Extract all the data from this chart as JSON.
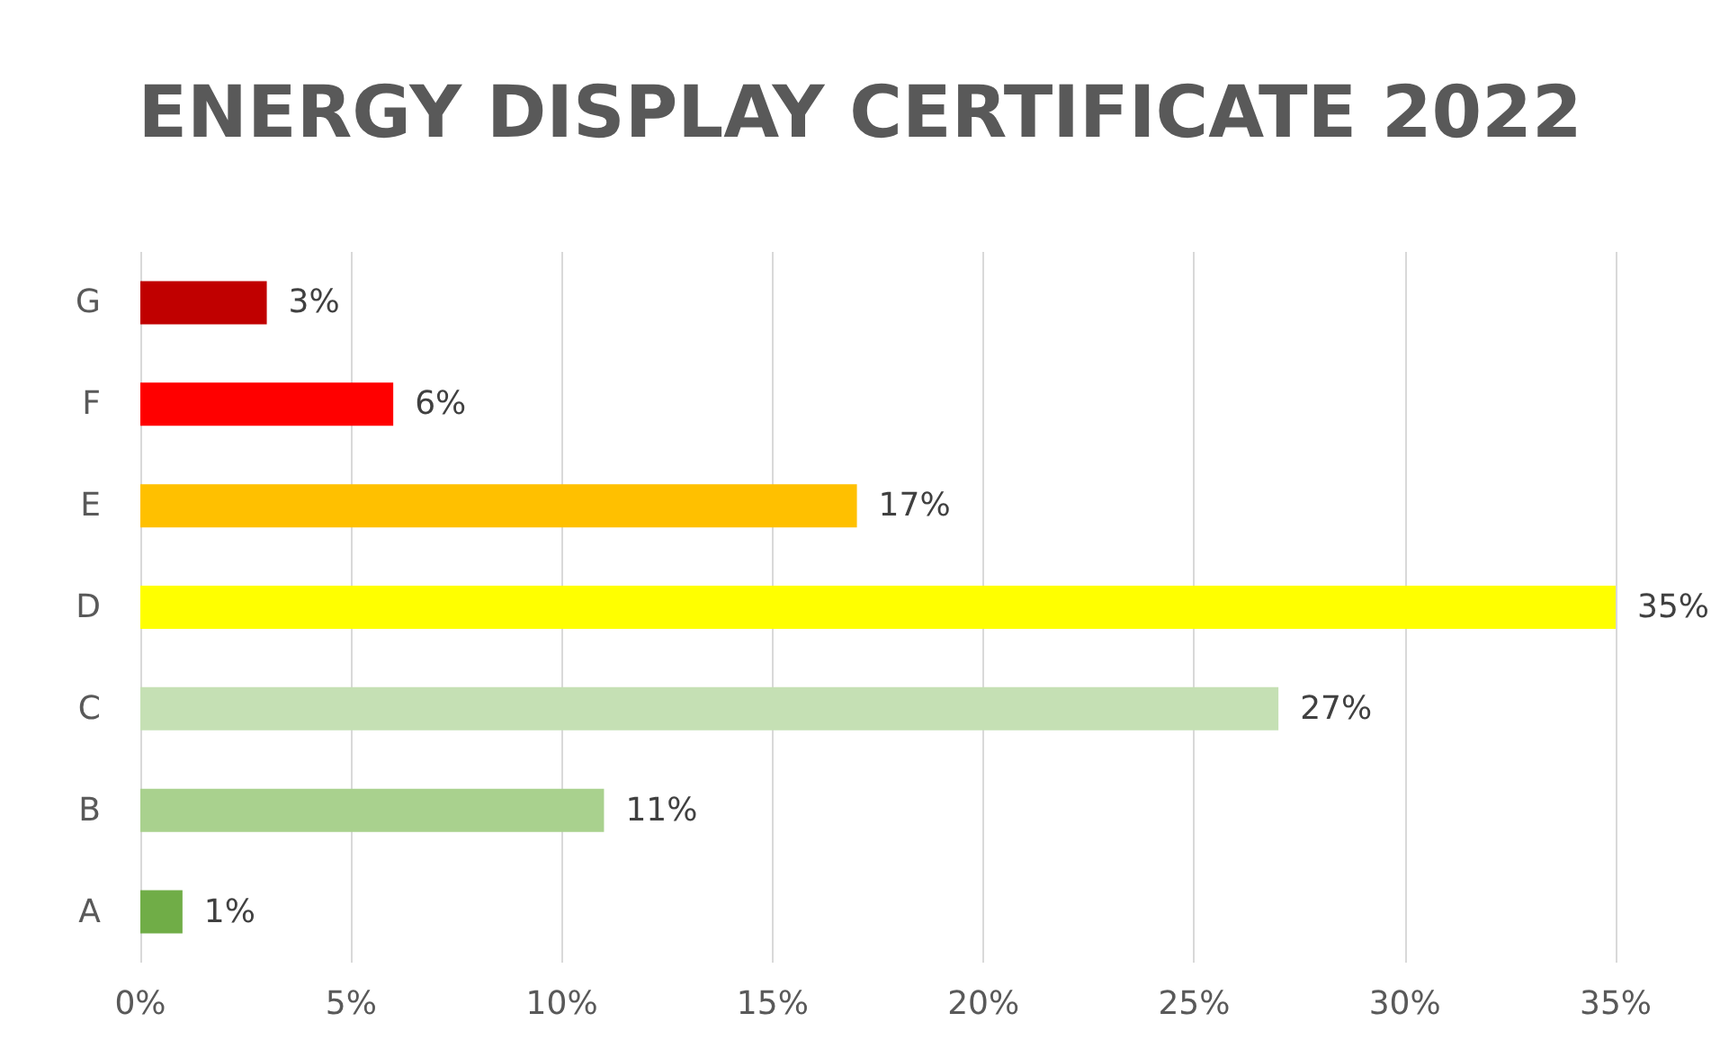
{
  "chart_data": {
    "type": "bar",
    "orientation": "horizontal",
    "title": "ENERGY DISPLAY CERTIFICATE 2022",
    "categories": [
      "G",
      "F",
      "E",
      "D",
      "C",
      "B",
      "A"
    ],
    "values": [
      3,
      6,
      17,
      35,
      27,
      11,
      1
    ],
    "colors": [
      "#c00000",
      "#ff0000",
      "#ffc000",
      "#ffff00",
      "#c5e0b4",
      "#a9d18e",
      "#70ad47"
    ],
    "value_labels": [
      "3%",
      "6%",
      "17%",
      "35%",
      "27%",
      "11%",
      "1%"
    ],
    "xlim": [
      0,
      35
    ],
    "xticks": [
      {
        "value": 0,
        "label": "0%"
      },
      {
        "value": 5,
        "label": "5%"
      },
      {
        "value": 10,
        "label": "10%"
      },
      {
        "value": 15,
        "label": "15%"
      },
      {
        "value": 20,
        "label": "20%"
      },
      {
        "value": 25,
        "label": "25%"
      },
      {
        "value": 30,
        "label": "30%"
      },
      {
        "value": 35,
        "label": "35%"
      }
    ],
    "grid": "x"
  }
}
